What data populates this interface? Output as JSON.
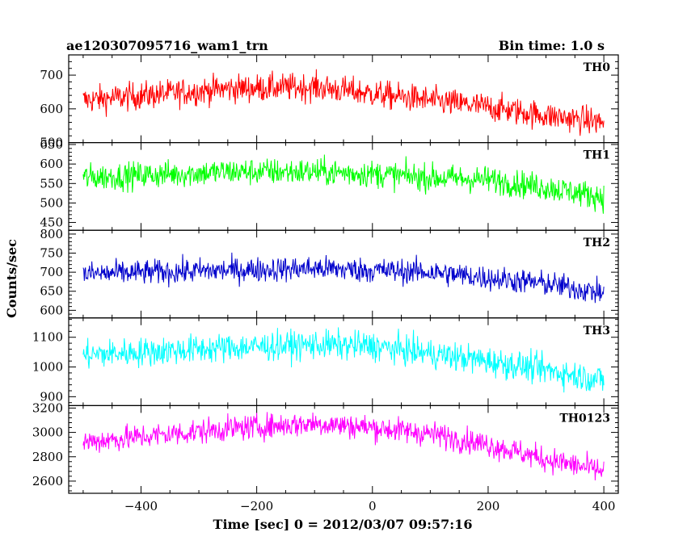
{
  "header": {
    "title": "ae120307095716_wam1_trn",
    "bin_time": "Bin time: 1.0 s"
  },
  "chart_data": {
    "type": "line",
    "xlabel": "Time [sec] 0 = 2012/03/07 09:57:16",
    "ylabel": "Counts/sec",
    "xlim": [
      -525,
      425
    ],
    "x_ticks": [
      -400,
      -200,
      0,
      200,
      400
    ],
    "x_tick_labels": [
      "−400",
      "−200",
      "0",
      "200",
      "400"
    ],
    "x_range_data": [
      -500,
      400
    ],
    "bin_time_sec": 1.0,
    "grid": false,
    "panels": [
      {
        "name": "TH0",
        "color": "#ff0000",
        "ylim": [
          500,
          760
        ],
        "yticks": [
          500,
          600,
          700
        ],
        "trend": [
          [
            -500,
            625
          ],
          [
            -250,
            660
          ],
          [
            -100,
            665
          ],
          [
            0,
            645
          ],
          [
            100,
            625
          ],
          [
            200,
            605
          ],
          [
            300,
            580
          ],
          [
            400,
            560
          ]
        ],
        "noise": 38
      },
      {
        "name": "TH1",
        "color": "#00ff00",
        "ylim": [
          430,
          655
        ],
        "yticks": [
          450,
          500,
          550,
          600,
          650
        ],
        "trend": [
          [
            -500,
            565
          ],
          [
            -250,
            580
          ],
          [
            -100,
            580
          ],
          [
            0,
            575
          ],
          [
            100,
            565
          ],
          [
            200,
            560
          ],
          [
            300,
            540
          ],
          [
            400,
            515
          ]
        ],
        "noise": 32
      },
      {
        "name": "TH2",
        "color": "#0000cc",
        "ylim": [
          580,
          810
        ],
        "yticks": [
          600,
          650,
          700,
          750,
          800
        ],
        "trend": [
          [
            -500,
            695
          ],
          [
            -250,
            705
          ],
          [
            -100,
            710
          ],
          [
            0,
            705
          ],
          [
            100,
            700
          ],
          [
            200,
            685
          ],
          [
            300,
            670
          ],
          [
            400,
            645
          ]
        ],
        "noise": 30
      },
      {
        "name": "TH3",
        "color": "#00ffff",
        "ylim": [
          870,
          1165
        ],
        "yticks": [
          900,
          1000,
          1100
        ],
        "trend": [
          [
            -500,
            1040
          ],
          [
            -250,
            1065
          ],
          [
            -100,
            1075
          ],
          [
            0,
            1070
          ],
          [
            100,
            1045
          ],
          [
            200,
            1020
          ],
          [
            300,
            990
          ],
          [
            400,
            955
          ]
        ],
        "noise": 45
      },
      {
        "name": "TH0123",
        "color": "#ff00ff",
        "ylim": [
          2500,
          3220
        ],
        "yticks": [
          2600,
          2800,
          3000,
          3200
        ],
        "trend": [
          [
            -500,
            2920
          ],
          [
            -250,
            3030
          ],
          [
            -100,
            3075
          ],
          [
            0,
            3040
          ],
          [
            100,
            2990
          ],
          [
            200,
            2900
          ],
          [
            300,
            2780
          ],
          [
            400,
            2680
          ]
        ],
        "noise": 95
      }
    ]
  }
}
